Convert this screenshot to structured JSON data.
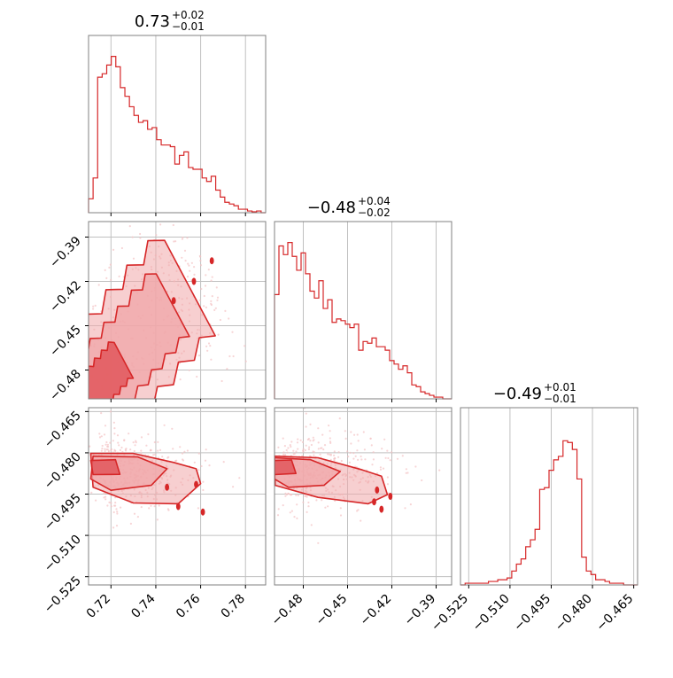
{
  "chart_data": {
    "type": "corner",
    "color": "#d62728",
    "contour_fill": "#f0a7aa",
    "scatter_color": "#f4c3c5",
    "grid": true,
    "titles": [
      {
        "main": "0.73",
        "plus": "+0.02",
        "minus": "−0.01"
      },
      {
        "main": "−0.48",
        "plus": "+0.04",
        "minus": "−0.02"
      },
      {
        "main": "−0.49",
        "plus": "+0.01",
        "minus": "−0.01"
      }
    ],
    "params": [
      {
        "range": [
          0.71,
          0.789
        ],
        "ticks": [
          0.72,
          0.74,
          0.76,
          0.78
        ],
        "tick_labels": [
          "0.72",
          "0.74",
          "0.76",
          "0.78"
        ]
      },
      {
        "range": [
          -0.4995,
          -0.3795
        ],
        "ticks": [
          -0.48,
          -0.45,
          -0.42,
          -0.39
        ],
        "tick_labels": [
          "−0.48",
          "−0.45",
          "−0.42",
          "−0.39"
        ]
      },
      {
        "range": [
          -0.528,
          -0.4636
        ],
        "ticks": [
          -0.525,
          -0.51,
          -0.495,
          -0.48,
          -0.465
        ],
        "tick_labels": [
          "−0.525",
          "−0.510",
          "−0.495",
          "−0.480",
          "−0.465"
        ]
      }
    ],
    "histograms": [
      [
        0.08,
        0.2,
        0.78,
        0.8,
        0.85,
        0.9,
        0.84,
        0.72,
        0.67,
        0.61,
        0.56,
        0.52,
        0.53,
        0.48,
        0.49,
        0.42,
        0.39,
        0.39,
        0.38,
        0.28,
        0.33,
        0.35,
        0.26,
        0.25,
        0.25,
        0.2,
        0.18,
        0.21,
        0.13,
        0.09,
        0.06,
        0.05,
        0.04,
        0.02,
        0.02,
        0.01,
        0.005,
        0.01,
        0.0
      ],
      [
        0.6,
        0.88,
        0.83,
        0.9,
        0.82,
        0.74,
        0.84,
        0.72,
        0.62,
        0.58,
        0.68,
        0.52,
        0.57,
        0.44,
        0.46,
        0.45,
        0.43,
        0.41,
        0.43,
        0.28,
        0.33,
        0.32,
        0.35,
        0.3,
        0.3,
        0.28,
        0.22,
        0.2,
        0.17,
        0.19,
        0.15,
        0.08,
        0.07,
        0.04,
        0.03,
        0.02,
        0.01,
        0.01,
        0.0,
        0.0
      ],
      [
        0.0,
        0.01,
        0.01,
        0.01,
        0.01,
        0.01,
        0.02,
        0.02,
        0.03,
        0.03,
        0.04,
        0.08,
        0.12,
        0.15,
        0.22,
        0.26,
        0.32,
        0.55,
        0.56,
        0.66,
        0.72,
        0.74,
        0.83,
        0.82,
        0.78,
        0.61,
        0.16,
        0.08,
        0.06,
        0.03,
        0.03,
        0.02,
        0.01,
        0.01,
        0.01,
        0.0,
        0.0,
        0.0
      ]
    ],
    "cloud_1_0": {
      "center": [
        0.714,
        -0.492
      ],
      "direction": [
        0.04,
        0.071
      ],
      "outer": {
        "along": [
          -0.4,
          1.0
        ],
        "width": 0.032
      },
      "mid": {
        "along": [
          -0.1,
          0.82
        ],
        "width": 0.021
      },
      "inner": {
        "along": [
          -0.18,
          0.28
        ],
        "width": 0.012
      },
      "isolated": [
        [
          0.765,
          -0.406
        ],
        [
          0.757,
          -0.42
        ],
        [
          0.748,
          -0.433
        ]
      ]
    },
    "cloud_2_0": {
      "outer": [
        [
          0.711,
          -0.4802
        ],
        [
          0.73,
          -0.4802
        ],
        [
          0.748,
          -0.4835
        ],
        [
          0.758,
          -0.4858
        ],
        [
          0.76,
          -0.4912
        ],
        [
          0.75,
          -0.4985
        ],
        [
          0.73,
          -0.4982
        ],
        [
          0.712,
          -0.4925
        ]
      ],
      "mid": [
        [
          0.712,
          -0.4812
        ],
        [
          0.732,
          -0.4815
        ],
        [
          0.745,
          -0.4858
        ],
        [
          0.738,
          -0.4918
        ],
        [
          0.72,
          -0.4936
        ],
        [
          0.711,
          -0.4895
        ]
      ],
      "inner": [
        [
          0.711,
          -0.4828
        ],
        [
          0.722,
          -0.4825
        ],
        [
          0.724,
          -0.4878
        ],
        [
          0.712,
          -0.4879
        ]
      ],
      "isolated": [
        [
          0.758,
          -0.4915
        ],
        [
          0.75,
          -0.4995
        ],
        [
          0.761,
          -0.5015
        ],
        [
          0.745,
          -0.4925
        ]
      ]
    },
    "cloud_2_1": {
      "outer": [
        [
          -0.4995,
          -0.4812
        ],
        [
          -0.47,
          -0.4818
        ],
        [
          -0.44,
          -0.4862
        ],
        [
          -0.427,
          -0.4885
        ],
        [
          -0.423,
          -0.4952
        ],
        [
          -0.436,
          -0.4985
        ],
        [
          -0.47,
          -0.4962
        ],
        [
          -0.499,
          -0.4918
        ]
      ],
      "mid": [
        [
          -0.4995,
          -0.4818
        ],
        [
          -0.475,
          -0.4825
        ],
        [
          -0.455,
          -0.4868
        ],
        [
          -0.466,
          -0.4918
        ],
        [
          -0.49,
          -0.4925
        ],
        [
          -0.4995,
          -0.4895
        ]
      ],
      "inner": [
        [
          -0.4995,
          -0.4828
        ],
        [
          -0.488,
          -0.4826
        ],
        [
          -0.485,
          -0.4875
        ],
        [
          -0.4995,
          -0.4879
        ]
      ],
      "isolated": [
        [
          -0.43,
          -0.4935
        ],
        [
          -0.432,
          -0.4978
        ],
        [
          -0.421,
          -0.4958
        ],
        [
          -0.427,
          -0.5005
        ]
      ]
    }
  }
}
